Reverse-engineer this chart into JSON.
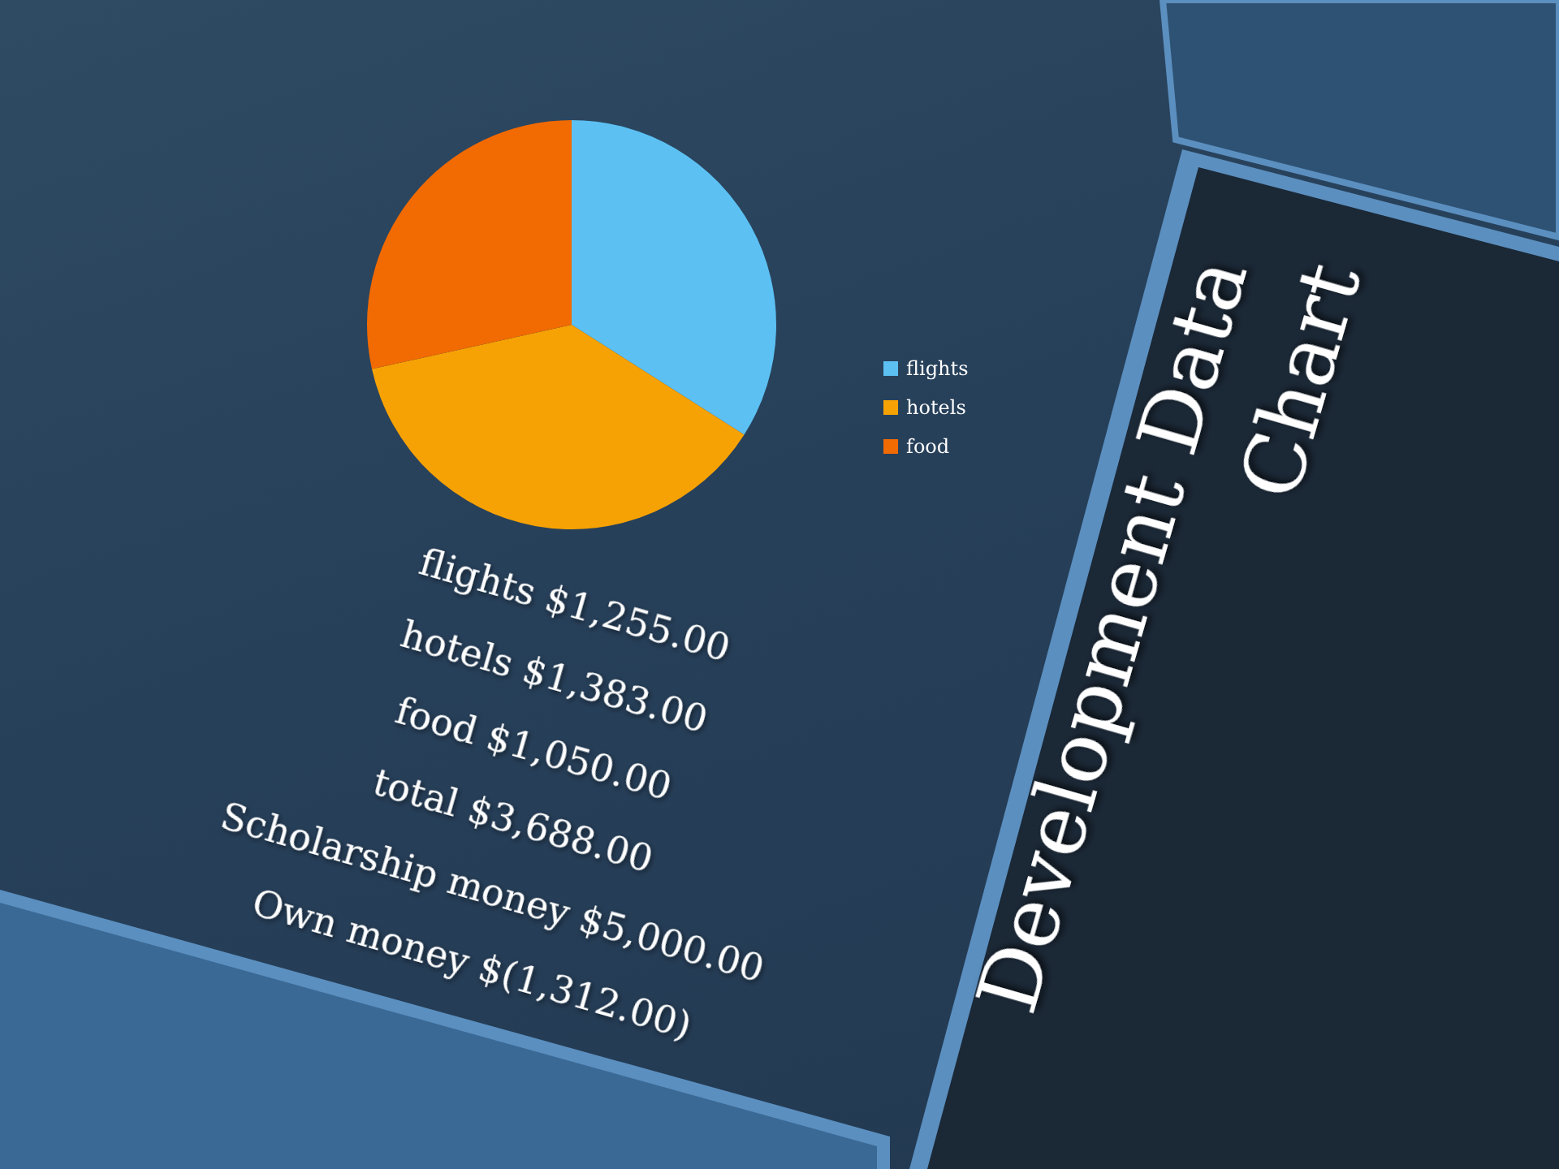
{
  "chart_data": {
    "type": "pie",
    "title": "Development Data Chart",
    "categories": [
      "flights",
      "hotels",
      "food"
    ],
    "values": [
      1255,
      1383,
      1050
    ],
    "value_labels": [
      "$1,255.00",
      "$1,383.00",
      "$1,050.00"
    ],
    "colors": [
      "#5cc0f2",
      "#f7a204",
      "#f26a02"
    ],
    "legend": "right",
    "annotations": [
      "total $3,688.00",
      "Scholarship money $5,000.00",
      "Own money $(1,312.00)"
    ]
  }
}
